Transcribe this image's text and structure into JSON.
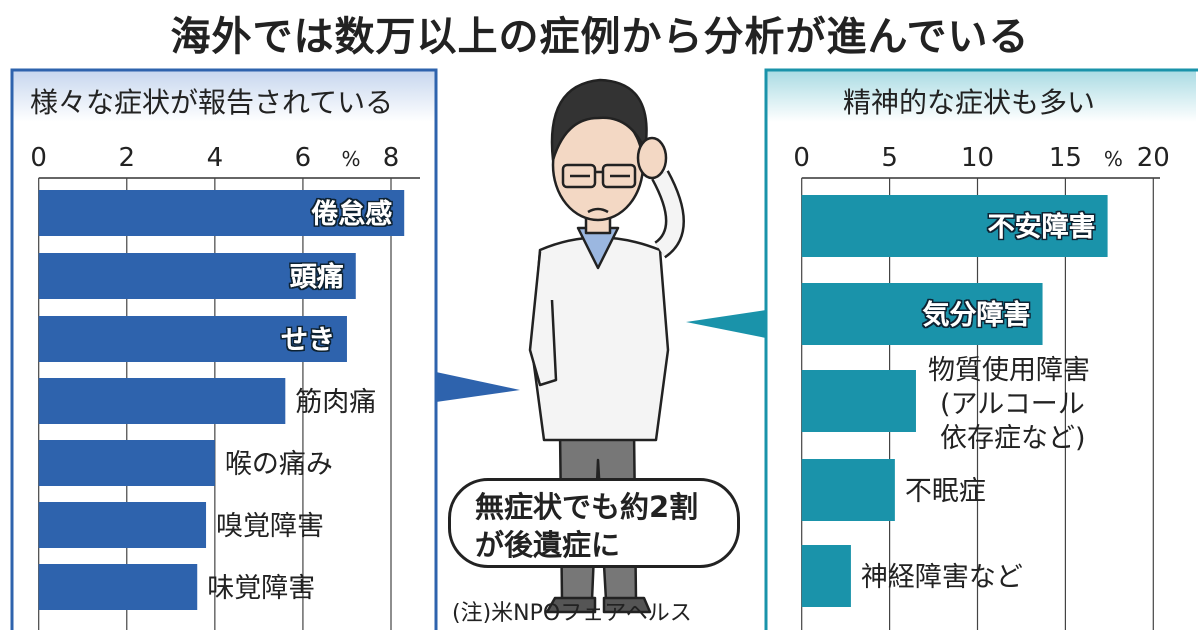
{
  "title": "海外では数万以上の症例から分析が進んでいる",
  "note": "(注)米NPOフェアヘルス",
  "bubble": {
    "line1": "無症状でも約2割",
    "line2": "が後遺症に"
  },
  "colors": {
    "left_bar": "#2e63ad",
    "right_bar": "#1a93aa",
    "left_frame": "#2e63ad",
    "right_frame": "#1a93aa"
  },
  "chart_data": [
    {
      "type": "bar",
      "orientation": "horizontal",
      "title": "様々な症状が報告されている",
      "unit": "%",
      "xlim": [
        0,
        8
      ],
      "ticks": [
        "0",
        "2",
        "4",
        "6",
        "8"
      ],
      "grid": true,
      "categories": [
        "倦怠感",
        "頭痛",
        "せき",
        "筋肉痛",
        "喉の痛み",
        "嗅覚障害",
        "味覚障害"
      ],
      "values": [
        8.3,
        7.2,
        7.0,
        5.6,
        4.0,
        3.8,
        3.6
      ]
    },
    {
      "type": "bar",
      "orientation": "horizontal",
      "title": "精神的な症状も多い",
      "unit": "%",
      "xlim": [
        0,
        20
      ],
      "ticks": [
        "0",
        "5",
        "10",
        "15",
        "20"
      ],
      "grid": true,
      "categories": [
        "不安障害",
        "気分障害",
        "物質使用障害（アルコール依存症など）",
        "不眠症",
        "神経障害など"
      ],
      "category_lines": [
        [
          "不安障害"
        ],
        [
          "気分障害"
        ],
        [
          "物質使用障害",
          "アルコール",
          "依存症など"
        ],
        [
          "不眠症"
        ],
        [
          "神経障害など"
        ]
      ],
      "values": [
        17.4,
        13.7,
        6.5,
        5.3,
        2.8
      ]
    }
  ]
}
